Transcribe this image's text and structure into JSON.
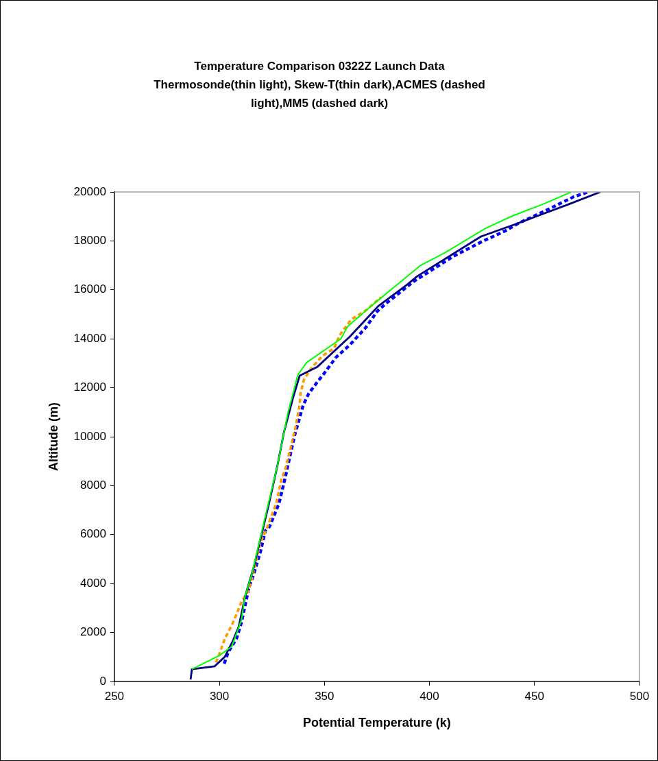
{
  "chart_data": {
    "type": "line",
    "title": "Temperature Comparison 0322Z Launch Data",
    "subtitle": "Thermosonde(thin light), Skew-T(thin dark),ACMES (dashed light),MM5 (dashed dark)",
    "xlabel": "Potential Temperature (k)",
    "ylabel": "Altitude (m)",
    "xlim": [
      250,
      500
    ],
    "xticks": [
      250,
      300,
      350,
      400,
      450,
      500
    ],
    "ylim": [
      0,
      20000
    ],
    "yticks": [
      0,
      2000,
      4000,
      6000,
      8000,
      10000,
      12000,
      14000,
      16000,
      18000,
      20000
    ],
    "grid": false,
    "legend": false,
    "marker": "none",
    "series": [
      {
        "color": "#00ff00",
        "line_style": "solid",
        "x": [
          286.9,
          300,
          305.9,
          310.5,
          312.1,
          315.4,
          319,
          323.2,
          327.5,
          330.4,
          332.7,
          335.3,
          337.3,
          341.5,
          357.8,
          361.1,
          375.2,
          383,
          395.8,
          407.2,
          426.8,
          439.5,
          454.6,
          467.5
        ],
        "values": [
          500,
          1060,
          1430,
          2520,
          3450,
          4370,
          5700,
          7230,
          8770,
          10030,
          11000,
          11850,
          12520,
          13030,
          14000,
          14510,
          15550,
          16100,
          17000,
          17510,
          18520,
          19020,
          19520,
          20000
        ]
      },
      {
        "color": "#000080",
        "line_style": "solid",
        "x": [
          286.3,
          286.9,
          297.7,
          302.6,
          306.5,
          309.2,
          312.4,
          316.3,
          323.5,
          327.5,
          330.7,
          335,
          338.2,
          346.7,
          362.1,
          375.8,
          389.5,
          394.1,
          424.5,
          441.2,
          454.9,
          467,
          481.4
        ],
        "values": [
          80,
          500,
          620,
          1010,
          1680,
          2240,
          3530,
          4650,
          7230,
          8770,
          10170,
          11570,
          12490,
          12860,
          14090,
          15350,
          16220,
          16550,
          18180,
          18690,
          19130,
          19520,
          20000
        ]
      },
      {
        "color": "#ff9900",
        "line_style": "dashed",
        "x": [
          298.4,
          300,
          302.6,
          305.6,
          308.2,
          310.5,
          314,
          317,
          319.6,
          322.9,
          327.1,
          329.4,
          331.7,
          334.3,
          335.9,
          338.2,
          338.6,
          340.2,
          343.5,
          349,
          354.6,
          357.2,
          362.7,
          369.6,
          375.2,
          377
        ],
        "values": [
          780,
          1120,
          1760,
          2240,
          2750,
          3250,
          3730,
          4760,
          5690,
          6330,
          7280,
          8210,
          8770,
          9690,
          10250,
          11290,
          11760,
          12320,
          12770,
          13300,
          13610,
          14140,
          14790,
          15150,
          15570,
          15700
        ]
      },
      {
        "color": "#0000ff",
        "line_style": "dashed",
        "x": [
          302.3,
          304.2,
          308.2,
          310.5,
          312.4,
          314,
          316.3,
          319.6,
          321.9,
          323.9,
          328.4,
          331,
          333.7,
          335.9,
          339.9,
          342.5,
          346.4,
          350,
          355.6,
          362.1,
          369.6,
          375.2,
          379.1,
          392.8,
          411.4,
          425.2,
          436.6,
          442.8,
          454.9,
          468.6,
          475.5
        ],
        "values": [
          730,
          1200,
          1760,
          2410,
          3170,
          3810,
          4370,
          5320,
          6160,
          6330,
          7280,
          8210,
          9240,
          10080,
          11290,
          11760,
          12210,
          12600,
          13250,
          13750,
          14450,
          15130,
          15430,
          16360,
          17370,
          17980,
          18430,
          18740,
          19220,
          19800,
          20000
        ]
      }
    ]
  }
}
